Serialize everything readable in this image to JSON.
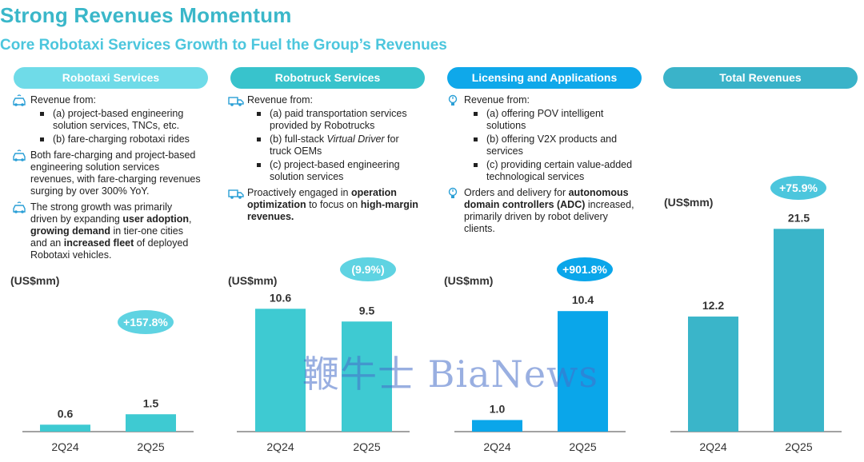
{
  "title": "Strong Revenues Momentum",
  "subtitle": "Core Robotaxi Services Growth to Fuel the Group’s Revenues",
  "watermark": "鞭牛士 BiaNews",
  "panels": [
    {
      "header": "Robotaxi Services",
      "header_color": "#6fdbe8",
      "bullets": [
        {
          "icon": "car-icon",
          "text": "Revenue from:",
          "sub": [
            "(a) project-based engineering solution services, TNCs, etc.",
            "(b) fare-charging robotaxi rides"
          ]
        },
        {
          "icon": "car-icon",
          "html": "Both fare-charging and project-based engineering solution services revenues, with fare-charging revenues surging by over 300% YoY."
        },
        {
          "icon": "car-icon",
          "html": "The strong growth was primarily driven by expanding <b>user adoption</b>, <b>growing demand</b> in tier-one cities and an <b>increased fleet</b> of deployed Robotaxi vehicles."
        }
      ]
    },
    {
      "header": "Robotruck Services",
      "header_color": "#38c3cc",
      "bullets": [
        {
          "icon": "truck-icon",
          "text": "Revenue from:",
          "sub": [
            "(a) paid transportation services provided by Robotrucks",
            "(b) full-stack <i>Virtual Driver</i> for truck OEMs",
            "(c) project-based engineering solution services"
          ]
        },
        {
          "icon": "truck-icon",
          "html": "Proactively engaged in <b>operation optimization</b> to focus on <b>high-margin revenues.</b>"
        }
      ]
    },
    {
      "header": "Licensing and Applications",
      "header_color": "#0fa8ea",
      "bullets": [
        {
          "icon": "bulb-icon",
          "text": "Revenue from:",
          "sub": [
            "(a) offering POV intelligent solutions",
            "(b) offering V2X products and services",
            "(c) providing certain value-added technological services"
          ]
        },
        {
          "icon": "bulb-icon",
          "html": "Orders and delivery for <b>autonomous domain controllers (ADC)</b> increased, primarily driven by robot delivery clients."
        }
      ]
    },
    {
      "header": "Total Revenues",
      "header_color": "#3ab3c9",
      "bullets": []
    }
  ],
  "chart_data": [
    {
      "type": "bar",
      "title": "Robotaxi Services",
      "unit": "(US$mm)",
      "categories": [
        "2Q24",
        "2Q25"
      ],
      "values": [
        0.6,
        1.5
      ],
      "growth": "+157.8%",
      "color": "#3ecad2",
      "badge_color": "#5fd3e2"
    },
    {
      "type": "bar",
      "title": "Robotruck Services",
      "unit": "(US$mm)",
      "categories": [
        "2Q24",
        "2Q25"
      ],
      "values": [
        10.6,
        9.5
      ],
      "growth": "(9.9%)",
      "color": "#3ecad2",
      "badge_color": "#5fd3e2"
    },
    {
      "type": "bar",
      "title": "Licensing and Applications",
      "unit": "(US$mm)",
      "categories": [
        "2Q24",
        "2Q25"
      ],
      "values": [
        1.0,
        10.4
      ],
      "growth": "+901.8%",
      "color": "#0aa6ea",
      "badge_color": "#0aa6ea"
    },
    {
      "type": "bar",
      "title": "Total Revenues",
      "unit": "(US$mm)",
      "categories": [
        "2Q24",
        "2Q25"
      ],
      "values": [
        12.2,
        21.5
      ],
      "growth": "+75.9%",
      "color": "#3ab5c9",
      "badge_color": "#4cc6dd"
    }
  ]
}
